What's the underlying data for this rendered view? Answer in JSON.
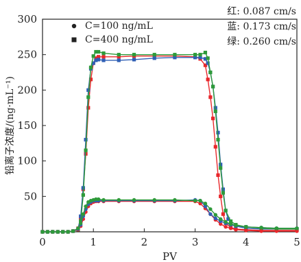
{
  "chart_data": {
    "type": "line",
    "xlabel": "PV",
    "ylabel": "铅离子浓度/(ng·mL⁻¹)",
    "xlim": [
      0,
      5
    ],
    "ylim": [
      0,
      300
    ],
    "xticks": [
      "0",
      "1",
      "2",
      "3",
      "4",
      "5"
    ],
    "yticks": [
      "50",
      "100",
      "150",
      "200",
      "250",
      "300"
    ],
    "legend": [
      {
        "marker": "circle",
        "label": "C=100 ng/mL"
      },
      {
        "marker": "square",
        "label": "C=400 ng/mL"
      }
    ],
    "annotations": [
      "红: 0.087 cm/s",
      "蓝: 0.173 cm/s",
      "绿: 0.260 cm/s"
    ],
    "colors": {
      "red": "#e8272b",
      "blue": "#2f5fb5",
      "green": "#2e9a3a"
    },
    "series": [
      {
        "color": "red",
        "marker": "square",
        "x": [
          0.0,
          0.1,
          0.2,
          0.3,
          0.4,
          0.5,
          0.6,
          0.7,
          0.75,
          0.8,
          0.85,
          0.9,
          0.95,
          1.0,
          1.05,
          1.1,
          1.2,
          1.5,
          1.8,
          2.2,
          2.6,
          3.0,
          3.1,
          3.2,
          3.25,
          3.3,
          3.35,
          3.4,
          3.45,
          3.5,
          3.55,
          3.6,
          3.7,
          3.8,
          4.0,
          4.3,
          4.6,
          5.0
        ],
        "y": [
          0,
          0,
          0,
          0,
          0,
          0,
          1,
          5,
          20,
          60,
          110,
          175,
          215,
          238,
          245,
          247,
          247,
          247,
          248,
          248,
          248,
          247,
          244,
          235,
          215,
          190,
          160,
          120,
          80,
          50,
          25,
          12,
          6,
          4,
          3,
          2,
          2,
          2
        ]
      },
      {
        "color": "blue",
        "marker": "square",
        "x": [
          0.0,
          0.1,
          0.2,
          0.3,
          0.4,
          0.5,
          0.6,
          0.7,
          0.75,
          0.8,
          0.85,
          0.9,
          0.95,
          1.0,
          1.05,
          1.1,
          1.2,
          1.5,
          1.8,
          2.2,
          2.6,
          3.0,
          3.1,
          3.2,
          3.25,
          3.3,
          3.35,
          3.4,
          3.45,
          3.5,
          3.55,
          3.6,
          3.65,
          3.7,
          3.8,
          4.0,
          4.3,
          4.6,
          5.0
        ],
        "y": [
          0,
          0,
          0,
          0,
          0,
          0,
          1,
          4,
          22,
          62,
          130,
          200,
          230,
          238,
          242,
          243,
          242,
          242,
          243,
          245,
          246,
          246,
          246,
          244,
          238,
          225,
          205,
          175,
          140,
          95,
          60,
          30,
          18,
          12,
          8,
          5,
          4,
          4,
          4
        ]
      },
      {
        "color": "green",
        "marker": "square",
        "x": [
          0.0,
          0.1,
          0.2,
          0.3,
          0.4,
          0.5,
          0.6,
          0.7,
          0.75,
          0.8,
          0.85,
          0.9,
          0.95,
          1.0,
          1.05,
          1.1,
          1.2,
          1.5,
          1.8,
          2.2,
          2.6,
          3.0,
          3.1,
          3.2,
          3.25,
          3.3,
          3.35,
          3.4,
          3.45,
          3.5,
          3.55,
          3.6,
          3.7,
          3.8,
          4.0,
          4.3,
          4.6,
          5.0
        ],
        "y": [
          0,
          0,
          0,
          0,
          0,
          0,
          1,
          3,
          15,
          52,
          115,
          190,
          232,
          248,
          254,
          254,
          252,
          250,
          250,
          250,
          250,
          250,
          250,
          253,
          245,
          225,
          205,
          170,
          130,
          90,
          55,
          30,
          15,
          10,
          7,
          5,
          4,
          4
        ]
      },
      {
        "color": "red",
        "marker": "circle",
        "x": [
          0.0,
          0.1,
          0.2,
          0.3,
          0.4,
          0.5,
          0.6,
          0.7,
          0.75,
          0.8,
          0.85,
          0.9,
          0.95,
          1.0,
          1.05,
          1.1,
          1.2,
          1.5,
          1.8,
          2.2,
          2.6,
          3.0,
          3.1,
          3.2,
          3.3,
          3.4,
          3.5,
          3.6,
          3.7,
          3.8,
          4.0,
          4.3,
          4.6,
          5.0
        ],
        "y": [
          0,
          0,
          0,
          0,
          0,
          0,
          1,
          3,
          8,
          18,
          28,
          36,
          40,
          42,
          43,
          43,
          43,
          43,
          43,
          43,
          43,
          43,
          40,
          33,
          25,
          17,
          11,
          7,
          5,
          3,
          2,
          1,
          1,
          1
        ]
      },
      {
        "color": "blue",
        "marker": "circle",
        "x": [
          0.0,
          0.1,
          0.2,
          0.3,
          0.4,
          0.5,
          0.6,
          0.7,
          0.75,
          0.8,
          0.85,
          0.9,
          0.95,
          1.0,
          1.05,
          1.1,
          1.2,
          1.5,
          1.8,
          2.2,
          2.6,
          3.0,
          3.1,
          3.2,
          3.3,
          3.4,
          3.5,
          3.6,
          3.7,
          3.8,
          4.0,
          4.3,
          4.6,
          5.0
        ],
        "y": [
          0,
          0,
          0,
          0,
          0,
          0,
          1,
          4,
          10,
          22,
          32,
          39,
          42,
          44,
          44,
          44,
          44,
          44,
          44,
          44,
          44,
          45,
          44,
          36,
          25,
          19,
          15,
          12,
          10,
          8,
          7,
          6,
          5,
          5
        ]
      },
      {
        "color": "green",
        "marker": "circle",
        "x": [
          0.0,
          0.1,
          0.2,
          0.3,
          0.4,
          0.5,
          0.6,
          0.7,
          0.75,
          0.8,
          0.85,
          0.9,
          0.95,
          1.0,
          1.05,
          1.1,
          1.2,
          1.5,
          1.8,
          2.2,
          2.6,
          3.0,
          3.1,
          3.2,
          3.3,
          3.4,
          3.5,
          3.6,
          3.7,
          3.8,
          4.0,
          4.3,
          4.6,
          5.0
        ],
        "y": [
          0,
          0,
          0,
          0,
          0,
          0,
          1,
          5,
          12,
          25,
          36,
          42,
          44,
          45,
          46,
          46,
          45,
          45,
          45,
          45,
          45,
          44,
          44,
          40,
          32,
          24,
          18,
          14,
          11,
          9,
          7,
          6,
          5,
          5
        ]
      }
    ]
  }
}
